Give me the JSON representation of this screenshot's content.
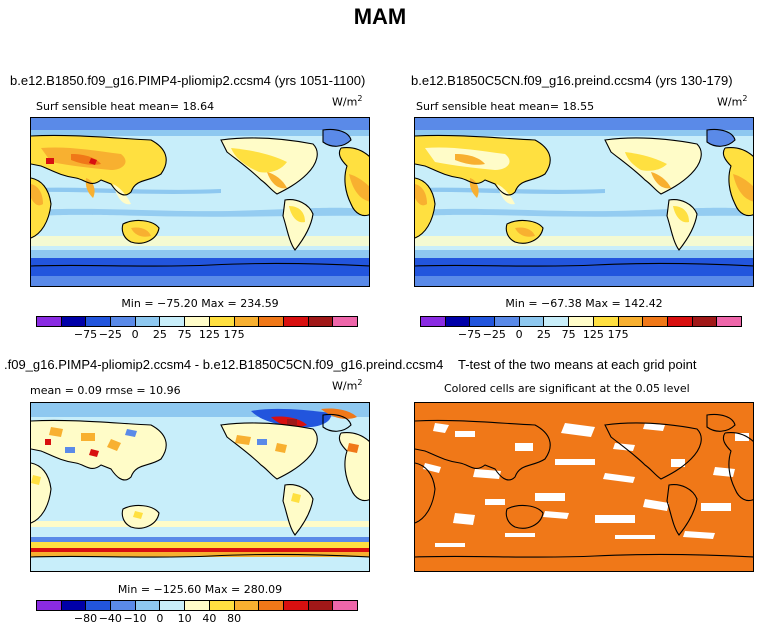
{
  "figure": {
    "title": "MAM"
  },
  "panels": [
    {
      "id": "p1",
      "title": "b.e12.B1850.f09_g16.PIMP4-pliomip2.ccsm4 (yrs 1051-1100)",
      "subtitle": "Surf sensible heat   mean=   18.64",
      "units": "W/m",
      "units_exp": "2",
      "minmax": "Min = −75.20 Max = 234.59",
      "colorbar": {
        "colors": [
          "#8a2be2",
          "#0000a8",
          "#2255dd",
          "#5a8ae8",
          "#8ec8f0",
          "#c8eefa",
          "#fffcc8",
          "#ffe040",
          "#f8b030",
          "#f07818",
          "#d81010",
          "#a01818",
          "#ee66aa"
        ],
        "ticks": [
          "−75",
          "−25",
          "0",
          "25",
          "75",
          "125",
          "175"
        ]
      }
    },
    {
      "id": "p2",
      "title": "b.e12.B1850C5CN.f09_g16.preind.ccsm4 (yrs 130-179)",
      "subtitle": "Surf sensible heat   mean=   18.55",
      "units": "W/m",
      "units_exp": "2",
      "minmax": "Min = −67.38 Max = 142.42",
      "colorbar": {
        "colors": [
          "#8a2be2",
          "#0000a8",
          "#2255dd",
          "#5a8ae8",
          "#8ec8f0",
          "#c8eefa",
          "#fffcc8",
          "#ffe040",
          "#f8b030",
          "#f07818",
          "#d81010",
          "#a01818",
          "#ee66aa"
        ],
        "ticks": [
          "−75",
          "−25",
          "0",
          "25",
          "75",
          "125",
          "175"
        ]
      }
    },
    {
      "id": "p3",
      "title": ".f09_g16.PIMP4-pliomip2.ccsm4 - b.e12.B1850C5CN.f09_g16.preind.ccsm4",
      "subtitle": "mean =    0.09      rmse =   10.96",
      "units": "W/m",
      "units_exp": "2",
      "minmax": "Min = −125.60 Max = 280.09",
      "colorbar": {
        "colors": [
          "#8a2be2",
          "#0000a8",
          "#2255dd",
          "#5a8ae8",
          "#8ec8f0",
          "#c8eefa",
          "#fffcc8",
          "#ffe040",
          "#f8b030",
          "#f07818",
          "#d81010",
          "#a01818",
          "#ee66aa"
        ],
        "ticks": [
          "−80",
          "−40",
          "−10",
          "0",
          "10",
          "40",
          "80"
        ]
      }
    },
    {
      "id": "p4",
      "title": "T-test of the two means at each grid point",
      "subtitle": "Colored cells are significant at the 0.05 level"
    }
  ]
}
